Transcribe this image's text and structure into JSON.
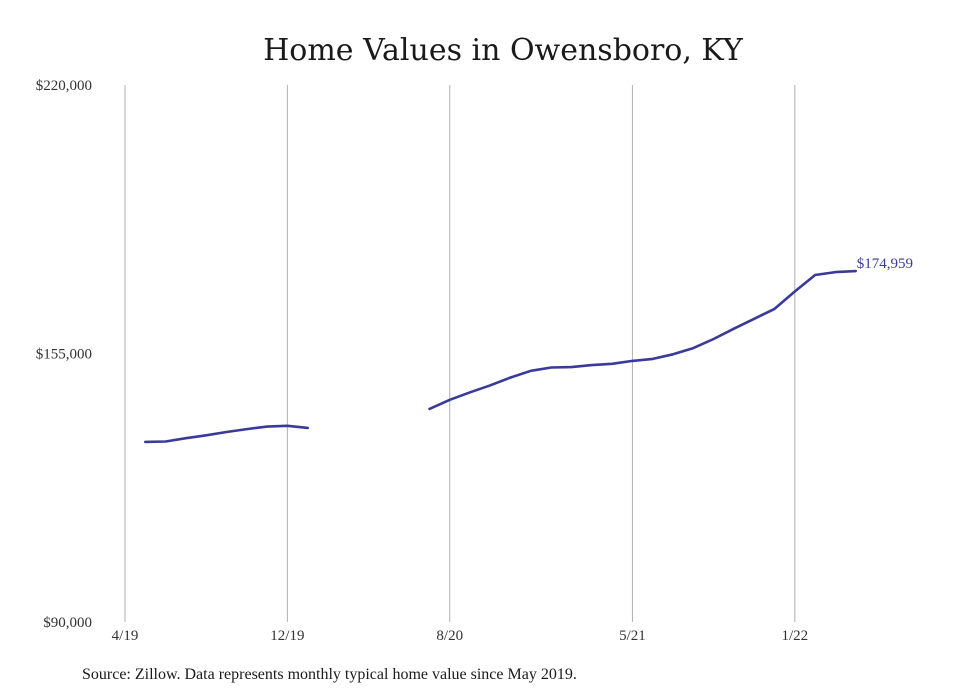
{
  "chart_data": {
    "type": "line",
    "title": "Home Values in Owensboro, KY",
    "xlabel": "",
    "ylabel": "",
    "ylim": [
      90000,
      220000
    ],
    "y_ticks": [
      {
        "value": 90000,
        "label": "$90,000"
      },
      {
        "value": 155000,
        "label": "$155,000"
      },
      {
        "value": 220000,
        "label": "$220,000"
      }
    ],
    "x_ticks": [
      {
        "value": "2019-04",
        "label": "4/19"
      },
      {
        "value": "2019-12",
        "label": "12/19"
      },
      {
        "value": "2020-08",
        "label": "8/20"
      },
      {
        "value": "2021-05",
        "label": "5/21"
      },
      {
        "value": "2022-01",
        "label": "1/22"
      }
    ],
    "xlim": [
      "2019-04",
      "2022-05"
    ],
    "grid": "vertical",
    "line_color": "#3a3a9a",
    "end_label": "$174,959",
    "series": [
      {
        "segments": [
          {
            "x": [
              "2019-05",
              "2019-06",
              "2019-07",
              "2019-08",
              "2019-09",
              "2019-10",
              "2019-11",
              "2019-12",
              "2020-01"
            ],
            "y": [
              133600,
              133700,
              134500,
              135200,
              136000,
              136700,
              137300,
              137500,
              137000
            ]
          },
          {
            "x": [
              "2020-07",
              "2020-08",
              "2020-09",
              "2020-10",
              "2020-11",
              "2020-12",
              "2021-01",
              "2021-02",
              "2021-03",
              "2021-04",
              "2021-05",
              "2021-06",
              "2021-07",
              "2021-08",
              "2021-09",
              "2021-10",
              "2021-11",
              "2021-12",
              "2022-01",
              "2022-02",
              "2022-03",
              "2022-04"
            ],
            "y": [
              141600,
              143800,
              145600,
              147300,
              149200,
              150800,
              151600,
              151700,
              152200,
              152500,
              153200,
              153700,
              154800,
              156300,
              158500,
              161000,
              163400,
              165800,
              170000,
              174000,
              174700,
              174959
            ]
          }
        ]
      }
    ]
  },
  "source_note": "Source: Zillow. Data represents monthly typical home value since May 2019."
}
